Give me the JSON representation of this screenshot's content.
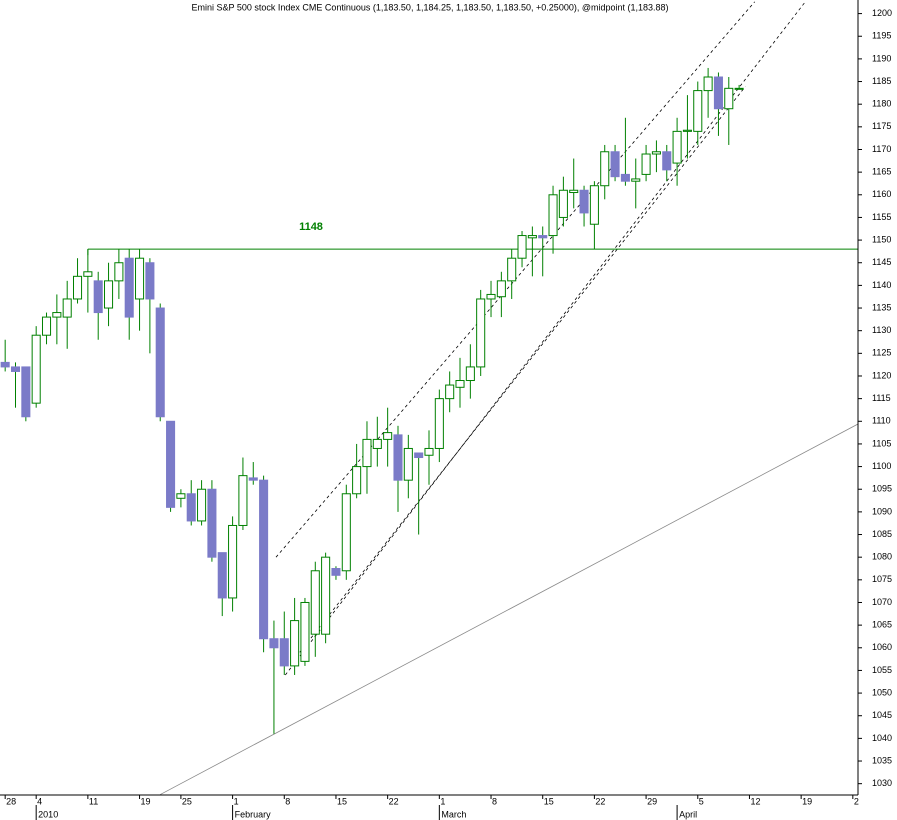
{
  "chart_data": {
    "type": "candlestick",
    "title": "Emini S&P 500 stock Index CME Continuous (1,183.50, 1,184.25, 1,183.50, 1,183.50, +0.25000), @midpoint (1,183.88)",
    "open": [
      1123,
      1122,
      1122,
      1114,
      1129,
      1133,
      1133,
      1137,
      1142,
      1141,
      1135,
      1141,
      1146,
      1137,
      1145,
      1135,
      1110,
      1093,
      1094,
      1088,
      1095,
      1081,
      1071,
      1087,
      1097.5,
      1097,
      1062,
      1062,
      1056,
      1057,
      1063,
      1063,
      1077.5,
      1077,
      1094,
      1100,
      1104,
      1106,
      1107,
      1097,
      1103,
      1102.5,
      1104,
      1115,
      1117.5,
      1119,
      1122,
      1137,
      1137.5,
      1141,
      1146,
      1150.5,
      1151,
      1151,
      1155,
      1160.5,
      1161,
      1153.5,
      1162,
      1169.5,
      1164.5,
      1163,
      1164.5,
      1169,
      1169.5,
      1167,
      1174,
      1174,
      1183,
      1186,
      1179,
      1183.5
    ],
    "high": [
      1128,
      1123,
      1122,
      1131,
      1134,
      1138,
      1141,
      1146,
      1148,
      1143,
      1145,
      1148,
      1148,
      1148,
      1146,
      1136,
      1110,
      1095,
      1097,
      1097,
      1097,
      1081,
      1089,
      1102,
      1101,
      1098,
      1066,
      1068,
      1071,
      1071,
      1079,
      1081,
      1078,
      1096,
      1105,
      1110,
      1111,
      1113,
      1109,
      1107,
      1103,
      1108,
      1117,
      1121,
      1124,
      1127,
      1139,
      1141,
      1143,
      1148,
      1152,
      1153,
      1153,
      1162,
      1164,
      1168,
      1162,
      1163,
      1171,
      1171,
      1177,
      1168,
      1171,
      1172,
      1171,
      1177,
      1182,
      1185,
      1188,
      1187,
      1186,
      1184.25
    ],
    "low": [
      1121,
      1113,
      1110,
      1113,
      1127,
      1127,
      1126,
      1136,
      1134,
      1128,
      1131,
      1137,
      1128,
      1130,
      1125,
      1110,
      1090,
      1091,
      1087,
      1087,
      1079,
      1067,
      1068,
      1086,
      1096,
      1059,
      1041,
      1054,
      1054,
      1056,
      1058,
      1061,
      1075,
      1075,
      1093,
      1094,
      1100,
      1100,
      1090,
      1093,
      1085,
      1096,
      1101,
      1112,
      1113,
      1115,
      1120,
      1133,
      1133,
      1137,
      1144,
      1142,
      1142,
      1147,
      1153,
      1157,
      1153,
      1148,
      1159,
      1163,
      1162,
      1157,
      1163,
      1165,
      1163,
      1162,
      1168,
      1171,
      1177,
      1173,
      1171,
      1183.5
    ],
    "close": [
      1122,
      1121,
      1111,
      1129,
      1133,
      1134,
      1137,
      1142,
      1143,
      1134,
      1141,
      1145,
      1133,
      1146,
      1137,
      1111,
      1091,
      1094,
      1088,
      1095,
      1080,
      1071,
      1087,
      1098,
      1097,
      1062,
      1060,
      1056,
      1066,
      1070,
      1077,
      1080,
      1076,
      1094,
      1100,
      1106,
      1106,
      1107.5,
      1097,
      1104,
      1102,
      1104,
      1115,
      1118,
      1119,
      1122,
      1137,
      1138,
      1141,
      1146,
      1151,
      1151,
      1150.5,
      1160,
      1161,
      1161,
      1156,
      1162,
      1169.5,
      1164,
      1163,
      1163.5,
      1169,
      1169.5,
      1165.5,
      1174,
      1174.25,
      1183,
      1186,
      1179,
      1183.5,
      1183.5
    ],
    "up_color": "#008000",
    "down_color": "#7b7bc8",
    "xlim": [
      -0.5,
      82.5
    ],
    "xticks": [
      {
        "value": 0,
        "label": "28"
      },
      {
        "value": 3,
        "label": "4"
      },
      {
        "value": 8,
        "label": "11"
      },
      {
        "value": 13,
        "label": "19"
      },
      {
        "value": 17,
        "label": "25"
      },
      {
        "value": 22,
        "label": "1"
      },
      {
        "value": 27,
        "label": "8"
      },
      {
        "value": 32,
        "label": "15"
      },
      {
        "value": 37,
        "label": "22"
      },
      {
        "value": 42,
        "label": "1"
      },
      {
        "value": 47,
        "label": "8"
      },
      {
        "value": 52,
        "label": "15"
      },
      {
        "value": 57,
        "label": "22"
      },
      {
        "value": 62,
        "label": "29"
      },
      {
        "value": 67,
        "label": "5"
      },
      {
        "value": 72,
        "label": "12"
      },
      {
        "value": 77,
        "label": "19"
      },
      {
        "value": 82,
        "label": "2"
      }
    ],
    "month_ticks": [
      {
        "value": 3,
        "label": "2010"
      },
      {
        "value": 22,
        "label": "February"
      },
      {
        "value": 42,
        "label": "March"
      },
      {
        "value": 65,
        "label": "April"
      }
    ],
    "ylim": [
      1027.5,
      1203
    ],
    "yticks": [
      1030,
      1035,
      1040,
      1045,
      1050,
      1055,
      1060,
      1065,
      1070,
      1075,
      1080,
      1085,
      1090,
      1095,
      1100,
      1105,
      1110,
      1115,
      1120,
      1125,
      1130,
      1135,
      1140,
      1145,
      1150,
      1155,
      1160,
      1165,
      1170,
      1175,
      1180,
      1185,
      1190,
      1195,
      1200
    ],
    "level": {
      "value": 1148,
      "start": 8,
      "color": "#008000"
    },
    "trendlines": [
      {
        "style": "dashed",
        "color": "#000000",
        "from": [
          26.2,
          1080
        ],
        "to": [
          72.5,
          1202.6
        ]
      },
      {
        "style": "dashed",
        "color": "#000000",
        "from": [
          27.1,
          1054
        ],
        "to": [
          77.4,
          1202.6
        ]
      },
      {
        "style": "dashed",
        "color": "#000000",
        "from": [
          28.5,
          1059
        ],
        "to": [
          71.6,
          1183.9
        ]
      },
      {
        "style": "solid",
        "color": "#8a8a8a",
        "from": [
          15,
          1027.6
        ],
        "to": [
          82.5,
          1109.4
        ]
      }
    ]
  }
}
